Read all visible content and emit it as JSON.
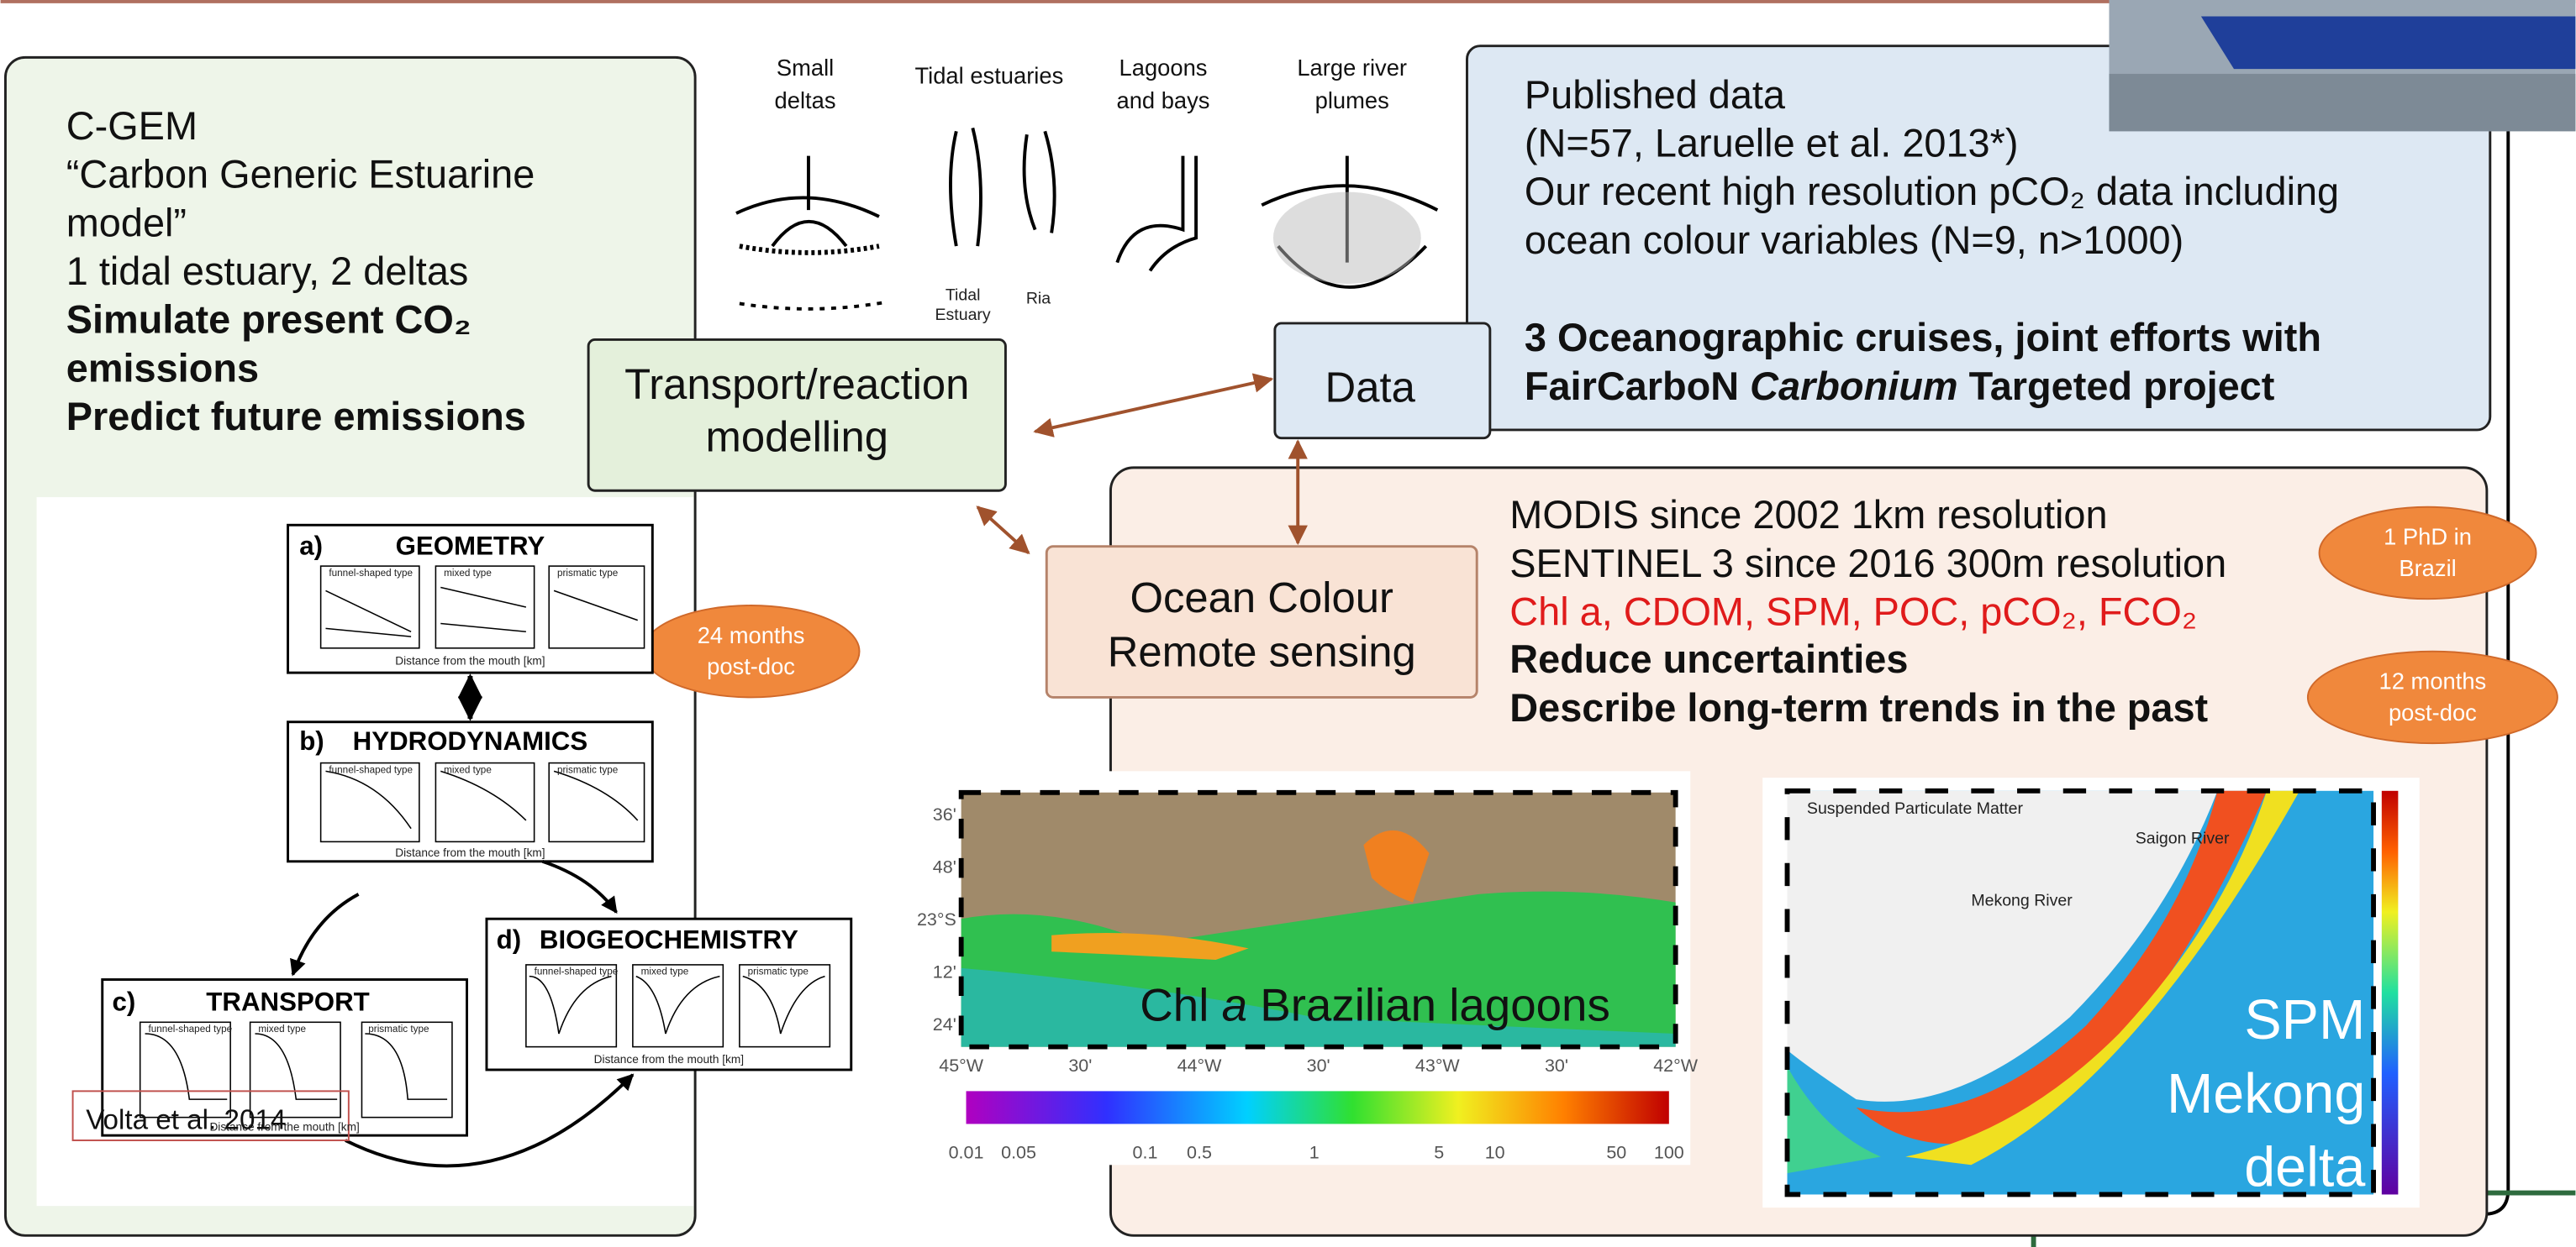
{
  "left_panel": {
    "lines": [
      "C-GEM",
      "“Carbon Generic Estuarine",
      "model”",
      "1 tidal estuary, 2 deltas"
    ],
    "bold_lines": [
      "Simulate present CO₂",
      "emissions",
      "Predict future emissions"
    ]
  },
  "modelling_box": {
    "lines": [
      "Transport/reaction",
      "modelling"
    ]
  },
  "estuary_types": [
    {
      "label": [
        "Small",
        "deltas"
      ]
    },
    {
      "label": [
        "Tidal estuaries"
      ]
    },
    {
      "label": [
        "Lagoons",
        "and bays"
      ]
    },
    {
      "label": [
        "Large river",
        "plumes"
      ]
    }
  ],
  "estuary_sublabels": [
    "Tidal",
    "Estuary",
    "Ria"
  ],
  "data_panel": {
    "lines": [
      "Published data",
      "(N=57, Laruelle et al. 2013*)",
      "Our recent high resolution pCO₂ data including",
      "ocean colour variables (N=9, n>1000)"
    ],
    "bold_lines": [
      [
        "3 Oceanographic cruises, joint efforts with"
      ],
      [
        "FairCarboN ",
        {
          "text": "Carbonium",
          "italic": true
        },
        " Targeted project"
      ]
    ]
  },
  "data_box": "Data",
  "ocean_colour_box": {
    "lines": [
      "Ocean Colour",
      "Remote sensing"
    ]
  },
  "remote_panel": {
    "lines": [
      "MODIS since 2002 1km resolution",
      "SENTINEL 3 since 2016 300m resolution"
    ],
    "red_line": "Chl a, CDOM, SPM, POC, pCO₂, FCO₂",
    "bold_lines": [
      "Reduce uncertainties",
      "Describe long-term trends in the past"
    ]
  },
  "badges": [
    [
      "1 PhD in",
      "Brazil"
    ],
    [
      "24 months",
      "post-doc"
    ],
    [
      "12 months",
      "post-doc"
    ]
  ],
  "model_figure": {
    "panels": [
      {
        "letter": "a)",
        "title": "GEOMETRY"
      },
      {
        "letter": "b)",
        "title": "HYDRODYNAMICS"
      },
      {
        "letter": "c)",
        "title": "TRANSPORT"
      },
      {
        "letter": "d)",
        "title": "BIOGEOCHEMISTRY"
      }
    ],
    "subplot_types": [
      "funnel-shaped type",
      "mixed type",
      "prismatic type"
    ],
    "x_label": "Distance from the mouth [km]",
    "citation": "Volta et al. 2014"
  },
  "brazil_map": {
    "caption": [
      "Chl ",
      {
        "text": "a",
        "italic": true
      },
      " Brazilian lagoons"
    ],
    "lon_labels": [
      "45°W",
      "30'",
      "44°W",
      "30'",
      "43°W",
      "30'",
      "42°W"
    ],
    "lat_labels": [
      "36'",
      "48'",
      "23°S",
      "12'",
      "24'"
    ],
    "colorbar_labels": [
      "0.01",
      "0.05",
      "0.1",
      "0.5",
      "1",
      "5",
      "10",
      "50",
      "100"
    ]
  },
  "mekong_map": {
    "title": "Suspended Particulate Matter",
    "rivers": [
      "Saigon River",
      "Mekong River"
    ],
    "caption": [
      "SPM",
      "Mekong",
      "delta"
    ]
  }
}
